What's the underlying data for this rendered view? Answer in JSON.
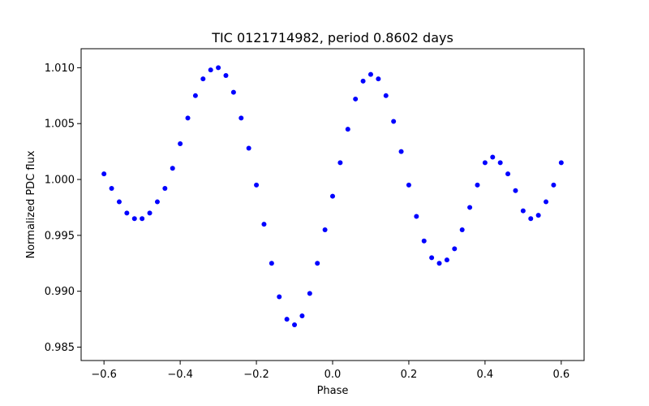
{
  "chart_data": {
    "type": "scatter",
    "title": "TIC 0121714982, period 0.8602 days",
    "xlabel": "Phase",
    "ylabel": "Normalized PDC flux",
    "xlim": [
      -0.66,
      0.66
    ],
    "ylim": [
      0.9838,
      1.0117
    ],
    "xticks": [
      -0.6,
      -0.4,
      -0.2,
      0.0,
      0.2,
      0.4,
      0.6
    ],
    "xtick_labels": [
      "−0.6",
      "−0.4",
      "−0.2",
      "0.0",
      "0.2",
      "0.4",
      "0.6"
    ],
    "yticks": [
      0.985,
      0.99,
      0.995,
      1.0,
      1.005,
      1.01
    ],
    "ytick_labels": [
      "0.985",
      "0.990",
      "0.995",
      "1.000",
      "1.005",
      "1.010"
    ],
    "grid": false,
    "legend": "none",
    "colors": {
      "points": "#0000ff",
      "axes": "#000000",
      "background": "#ffffff"
    },
    "series": [
      {
        "x": [
          -0.6,
          -0.58,
          -0.56,
          -0.54,
          -0.52,
          -0.5,
          -0.48,
          -0.46,
          -0.44,
          -0.42,
          -0.4,
          -0.38,
          -0.36,
          -0.34,
          -0.32,
          -0.3,
          -0.28,
          -0.26,
          -0.24,
          -0.22,
          -0.2,
          -0.18,
          -0.16,
          -0.14,
          -0.12,
          -0.1,
          -0.08,
          -0.06,
          -0.04,
          -0.02,
          0.0,
          0.02,
          0.04,
          0.06,
          0.08,
          0.1,
          0.12,
          0.14,
          0.16,
          0.18,
          0.2,
          0.22,
          0.24,
          0.26,
          0.28,
          0.3,
          0.32,
          0.34,
          0.36,
          0.38,
          0.4,
          0.42,
          0.44,
          0.46,
          0.48,
          0.5,
          0.52,
          0.54,
          0.56,
          0.58,
          0.6
        ],
        "y": [
          1.0005,
          0.9992,
          0.998,
          0.997,
          0.9965,
          0.9965,
          0.997,
          0.998,
          0.9992,
          1.001,
          1.0032,
          1.0055,
          1.0075,
          1.009,
          1.0098,
          1.01,
          1.0093,
          1.0078,
          1.0055,
          1.0028,
          0.9995,
          0.996,
          0.9925,
          0.9895,
          0.9875,
          0.987,
          0.9878,
          0.9898,
          0.9925,
          0.9955,
          0.9985,
          1.0015,
          1.0045,
          1.0072,
          1.0088,
          1.0094,
          1.009,
          1.0075,
          1.0052,
          1.0025,
          0.9995,
          0.9967,
          0.9945,
          0.993,
          0.9925,
          0.9928,
          0.9938,
          0.9955,
          0.9975,
          0.9995,
          1.0015,
          1.002,
          1.0015,
          1.0005,
          0.999,
          0.9972,
          0.9965,
          0.9968,
          0.998,
          0.9995,
          1.0015
        ]
      }
    ]
  }
}
